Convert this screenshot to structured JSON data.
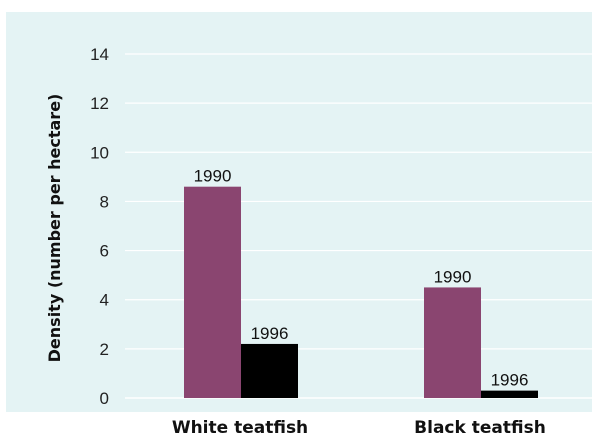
{
  "chart_data": {
    "type": "bar",
    "title": "",
    "xlabel": "",
    "ylabel": "Density (number per hectare)",
    "ylim": [
      0,
      14
    ],
    "yticks": [
      0,
      2,
      4,
      6,
      8,
      10,
      12,
      14
    ],
    "grid": true,
    "legend": "none",
    "categories": [
      "White teatfish",
      "Black teatfish"
    ],
    "series": [
      {
        "name": "1990",
        "values": [
          8.6,
          4.5
        ],
        "color": "#8a4570"
      },
      {
        "name": "1996",
        "values": [
          2.2,
          0.3
        ],
        "color": "#000000"
      }
    ],
    "background_color": "#e4f3f4",
    "grid_color": "#ffffff"
  }
}
